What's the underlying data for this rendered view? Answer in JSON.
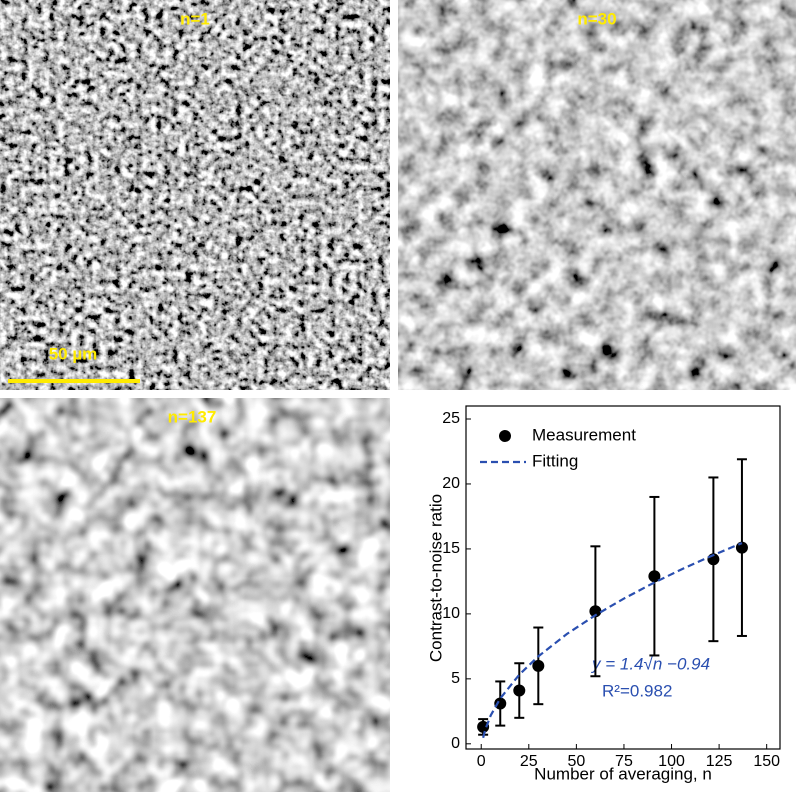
{
  "panels": [
    {
      "label": "n=1"
    },
    {
      "label": "n=30"
    },
    {
      "label": "n=137"
    }
  ],
  "scale_bar": "50 µm",
  "chart_data": {
    "type": "scatter",
    "xlabel": "Number of averaging, n",
    "ylabel": "Contrast-to-noise ratio",
    "xlim": [
      -8,
      157
    ],
    "xticks": [
      0,
      25,
      50,
      75,
      100,
      125,
      150
    ],
    "ylim": [
      -0.4,
      26
    ],
    "yticks": [
      0,
      5,
      10,
      15,
      20,
      25
    ],
    "legend": "upper left",
    "annotations": [
      "y = 1.4√n −0.94",
      "R²=0.982"
    ],
    "series": [
      {
        "name": "Measurement",
        "color": "#000000",
        "kind": "points",
        "x": [
          1,
          10,
          20,
          30,
          60,
          91,
          122,
          137
        ],
        "values": [
          1.3,
          3.1,
          4.1,
          6.0,
          10.2,
          12.9,
          14.2,
          15.1
        ],
        "errors": [
          0.6,
          1.7,
          2.1,
          2.95,
          5.0,
          6.1,
          6.3,
          6.8
        ]
      },
      {
        "name": "Fitting",
        "color": "#2a4fb0",
        "kind": "dashed",
        "x": [
          1,
          2,
          5,
          10,
          20,
          30,
          45,
          60,
          75,
          90,
          105,
          120,
          137
        ],
        "values": [
          0.46,
          1.04,
          2.19,
          3.49,
          5.32,
          6.73,
          8.45,
          9.9,
          11.18,
          12.34,
          13.41,
          14.4,
          15.45
        ]
      }
    ]
  }
}
